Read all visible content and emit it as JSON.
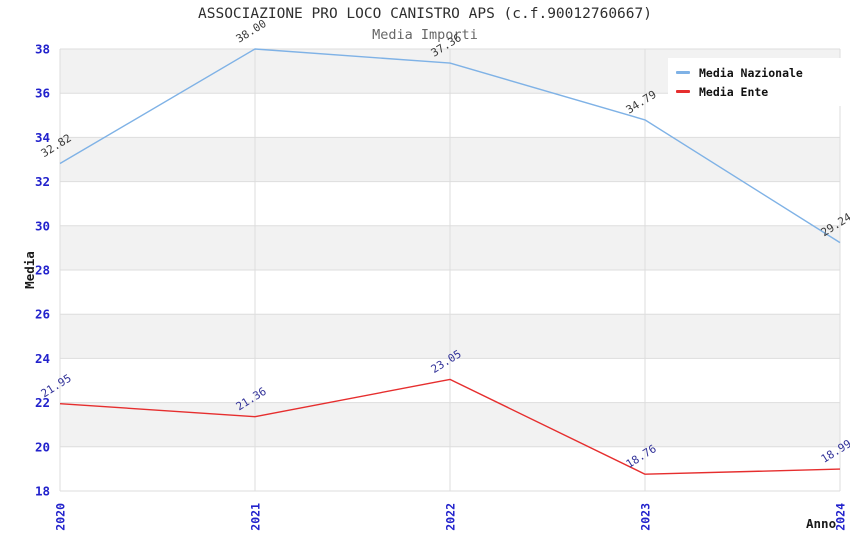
{
  "chart_data": {
    "type": "line",
    "title": "ASSOCIAZIONE PRO LOCO CANISTRO APS (c.f.90012760667)",
    "subtitle": "Media Importi",
    "xlabel": "Anno",
    "ylabel": "Media",
    "categories": [
      "2020",
      "2021",
      "2022",
      "2023",
      "2024"
    ],
    "ylim": [
      18,
      38
    ],
    "ytick_step": 2,
    "grid": true,
    "legend_position": "top-right",
    "series": [
      {
        "name": "Media Nazionale",
        "color": "#7fb2e6",
        "label_color": "#3a3a3a",
        "values": [
          32.82,
          38.0,
          37.36,
          34.79,
          29.24
        ]
      },
      {
        "name": "Media Ente",
        "color": "#e62e2e",
        "label_color": "#333399",
        "values": [
          21.95,
          21.36,
          23.05,
          18.76,
          18.99
        ]
      }
    ],
    "colors": {
      "axis_text": "#2222cc",
      "band": "#f2f2f2",
      "grid": "#dddddd",
      "title_text": "#2e2e2e",
      "subtitle_text": "#666666"
    }
  }
}
